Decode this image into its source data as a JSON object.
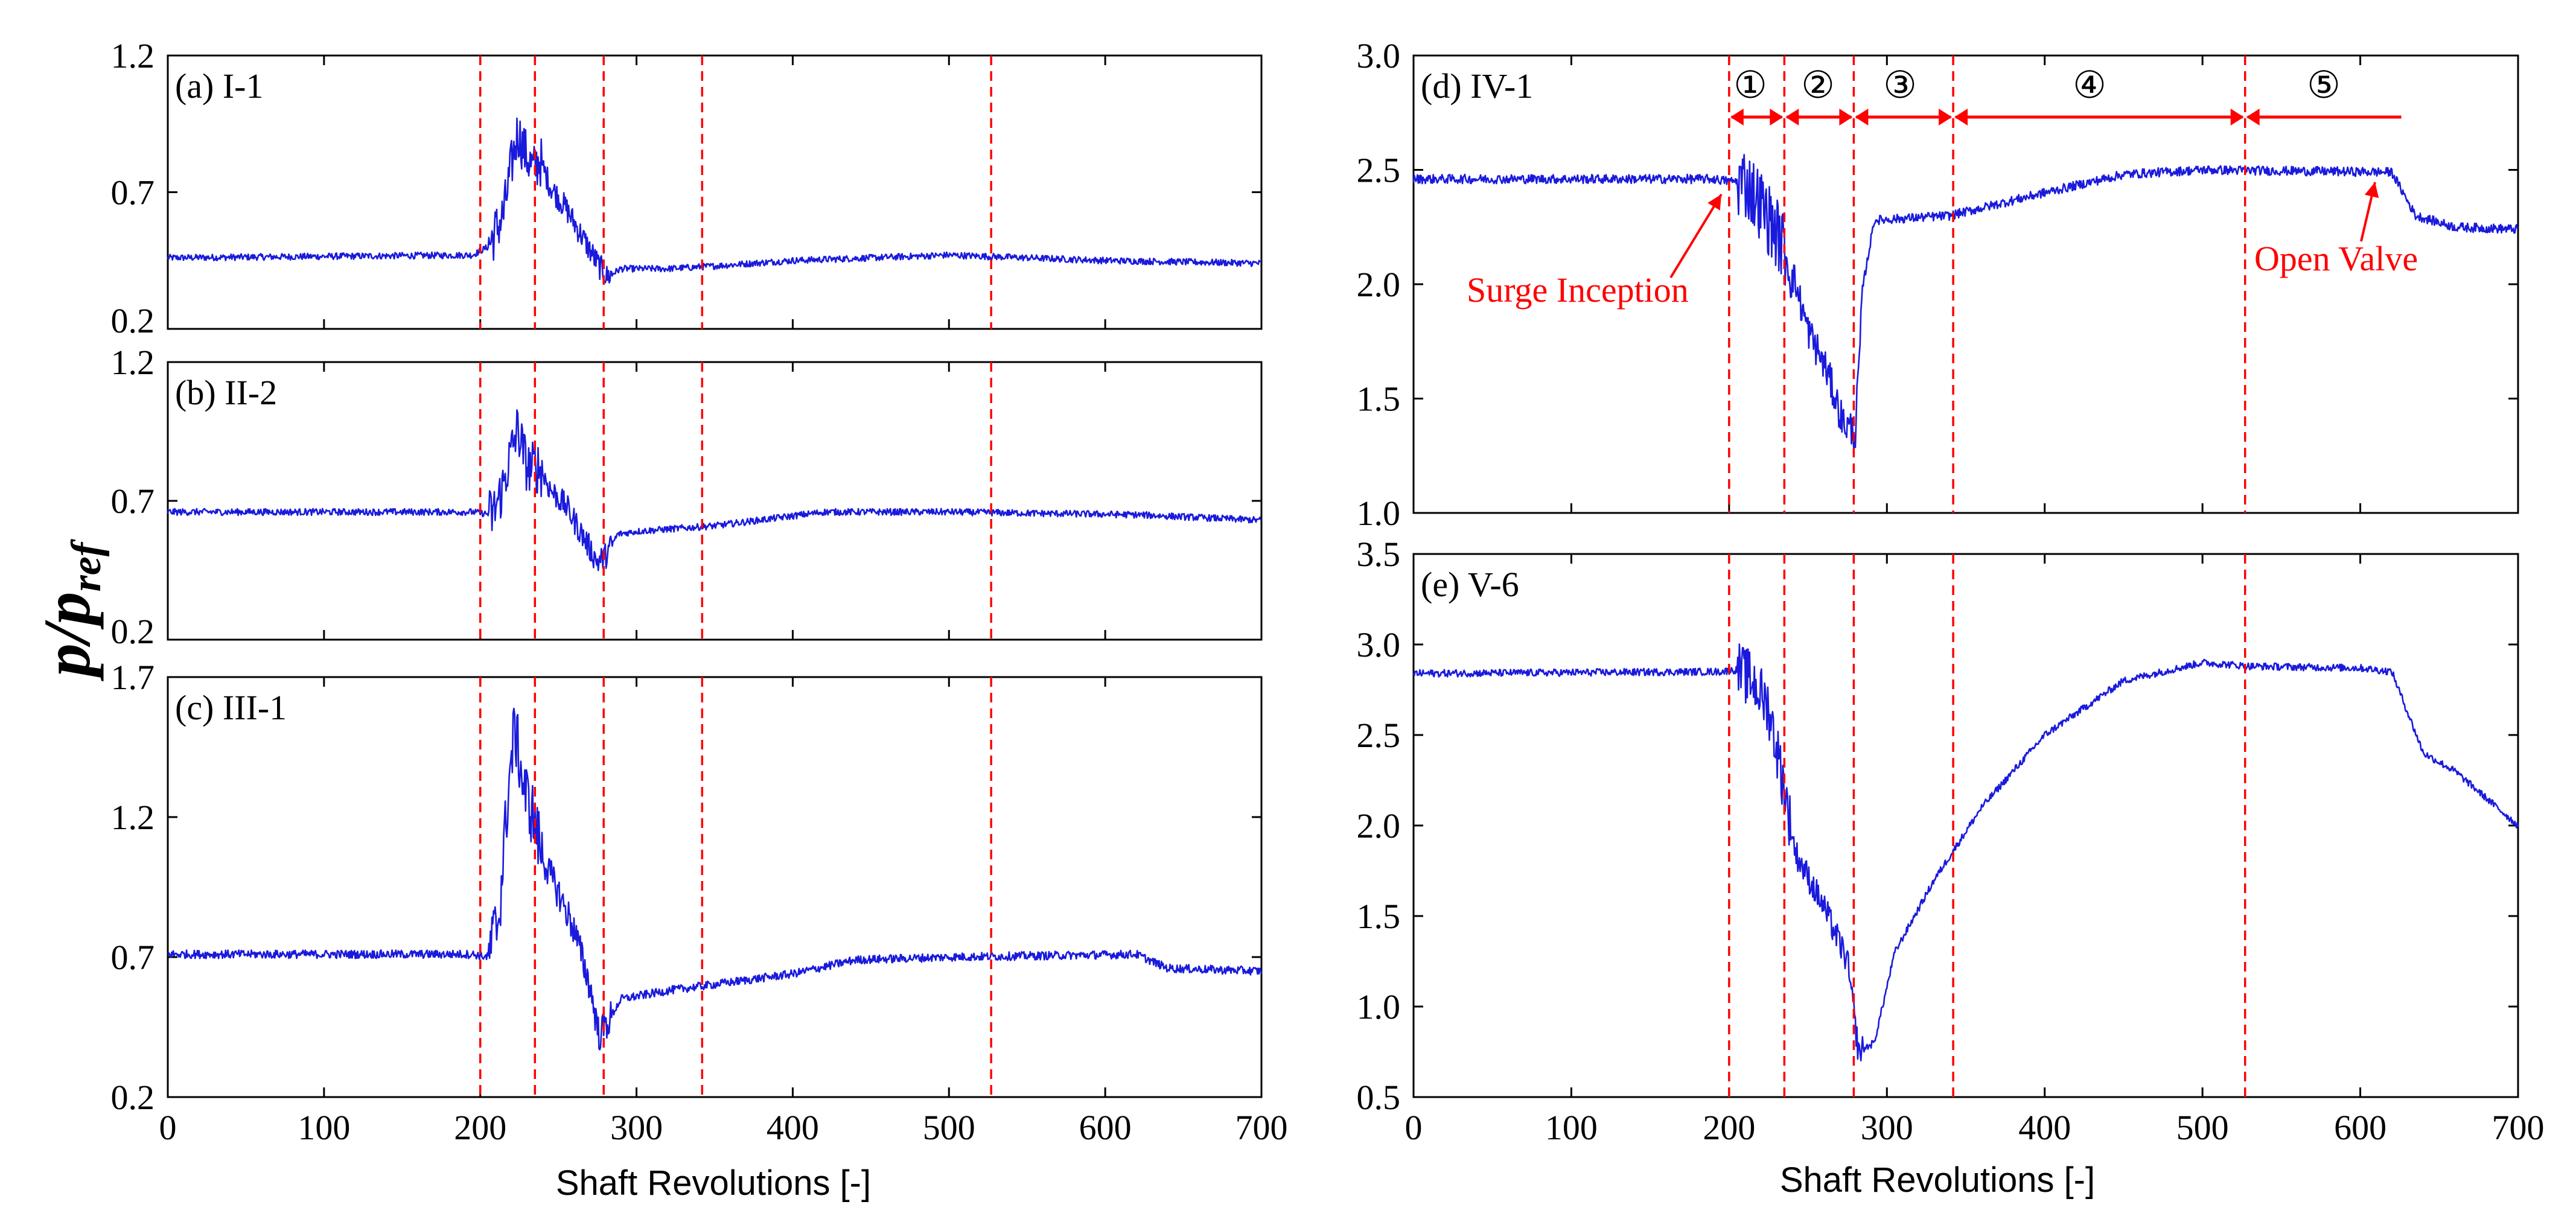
{
  "chart_data": {
    "type": "line",
    "shared": {
      "xlabel": "Shaft Revolutions [-]",
      "xlim": [
        0,
        700
      ],
      "xticks": [
        0,
        100,
        200,
        300,
        400,
        500,
        600,
        700
      ],
      "ylabel_base": "p",
      "ylabel_sep": "/",
      "ylabel_den": "p",
      "ylabel_sub": "ref",
      "event_lines_x": [
        200,
        235,
        279,
        342,
        527
      ],
      "series_color": "#1a1adc",
      "event_color": "#ff0000"
    },
    "panels": [
      {
        "label": "(a) I-1",
        "ylim": [
          0.2,
          1.2
        ],
        "yticks": [
          "0.2",
          "0.7",
          "1.2"
        ],
        "series_profile": [
          [
            0,
            0.46
          ],
          [
            195,
            0.47
          ],
          [
            205,
            0.5
          ],
          [
            215,
            0.62
          ],
          [
            220,
            0.8
          ],
          [
            224,
            0.92
          ],
          [
            229,
            0.84
          ],
          [
            234,
            0.78
          ],
          [
            238,
            0.82
          ],
          [
            245,
            0.72
          ],
          [
            255,
            0.64
          ],
          [
            265,
            0.54
          ],
          [
            275,
            0.44
          ],
          [
            281,
            0.39
          ],
          [
            290,
            0.42
          ],
          [
            320,
            0.42
          ],
          [
            350,
            0.43
          ],
          [
            400,
            0.45
          ],
          [
            500,
            0.47
          ],
          [
            600,
            0.45
          ],
          [
            700,
            0.44
          ]
        ],
        "noise": 0.012
      },
      {
        "label": "(b) II-2",
        "ylim": [
          0.2,
          1.2
        ],
        "yticks": [
          "0.2",
          "0.7",
          "1.2"
        ],
        "series_profile": [
          [
            0,
            0.66
          ],
          [
            195,
            0.66
          ],
          [
            208,
            0.65
          ],
          [
            214,
            0.74
          ],
          [
            220,
            0.88
          ],
          [
            224,
            0.96
          ],
          [
            230,
            0.82
          ],
          [
            238,
            0.82
          ],
          [
            245,
            0.74
          ],
          [
            255,
            0.68
          ],
          [
            265,
            0.58
          ],
          [
            275,
            0.48
          ],
          [
            280,
            0.5
          ],
          [
            288,
            0.58
          ],
          [
            300,
            0.59
          ],
          [
            350,
            0.61
          ],
          [
            420,
            0.66
          ],
          [
            500,
            0.66
          ],
          [
            620,
            0.65
          ],
          [
            700,
            0.63
          ]
        ],
        "noise": 0.012
      },
      {
        "label": "(c) III-1",
        "ylim": [
          0.2,
          1.7
        ],
        "yticks": [
          "0.2",
          "0.7",
          "1.2",
          "1.7"
        ],
        "series_profile": [
          [
            0,
            0.71
          ],
          [
            195,
            0.71
          ],
          [
            205,
            0.7
          ],
          [
            212,
            0.85
          ],
          [
            218,
            1.3
          ],
          [
            222,
            1.52
          ],
          [
            228,
            1.3
          ],
          [
            234,
            1.2
          ],
          [
            240,
            1.05
          ],
          [
            250,
            0.93
          ],
          [
            260,
            0.8
          ],
          [
            270,
            0.6
          ],
          [
            276,
            0.42
          ],
          [
            281,
            0.46
          ],
          [
            290,
            0.55
          ],
          [
            320,
            0.58
          ],
          [
            400,
            0.64
          ],
          [
            440,
            0.69
          ],
          [
            500,
            0.7
          ],
          [
            620,
            0.71
          ],
          [
            640,
            0.66
          ],
          [
            700,
            0.65
          ]
        ],
        "noise": 0.015
      },
      {
        "label": "(d) IV-1",
        "ylim": [
          1.0,
          3.0
        ],
        "yticks": [
          "1.0",
          "1.5",
          "2.0",
          "2.5",
          "3.0"
        ],
        "series_profile": [
          [
            0,
            2.46
          ],
          [
            190,
            2.46
          ],
          [
            200,
            2.45
          ],
          [
            210,
            2.45
          ],
          [
            220,
            2.35
          ],
          [
            232,
            2.2
          ],
          [
            238,
            2.1
          ],
          [
            250,
            1.8
          ],
          [
            262,
            1.62
          ],
          [
            272,
            1.4
          ],
          [
            280,
            1.35
          ],
          [
            285,
            2.0
          ],
          [
            292,
            2.28
          ],
          [
            340,
            2.3
          ],
          [
            400,
            2.4
          ],
          [
            450,
            2.48
          ],
          [
            500,
            2.5
          ],
          [
            620,
            2.49
          ],
          [
            635,
            2.3
          ],
          [
            660,
            2.25
          ],
          [
            700,
            2.24
          ]
        ],
        "noise": 0.02,
        "phases": [
          "①",
          "②",
          "③",
          "④",
          "⑤"
        ],
        "annotations": [
          "Surge Inception",
          "Open Valve"
        ]
      },
      {
        "label": "(e) V-6",
        "ylim": [
          0.5,
          3.5
        ],
        "yticks": [
          "0.5",
          "1.0",
          "1.5",
          "2.0",
          "2.5",
          "3.0",
          "3.5"
        ],
        "series_profile": [
          [
            0,
            2.84
          ],
          [
            195,
            2.85
          ],
          [
            205,
            2.86
          ],
          [
            215,
            2.8
          ],
          [
            225,
            2.65
          ],
          [
            233,
            2.3
          ],
          [
            242,
            1.85
          ],
          [
            260,
            1.55
          ],
          [
            275,
            1.25
          ],
          [
            282,
            0.75
          ],
          [
            292,
            0.8
          ],
          [
            305,
            1.3
          ],
          [
            330,
            1.7
          ],
          [
            360,
            2.1
          ],
          [
            400,
            2.5
          ],
          [
            450,
            2.8
          ],
          [
            500,
            2.9
          ],
          [
            530,
            2.88
          ],
          [
            600,
            2.87
          ],
          [
            620,
            2.85
          ],
          [
            640,
            2.4
          ],
          [
            660,
            2.3
          ],
          [
            700,
            2.0
          ]
        ],
        "noise": 0.02
      }
    ]
  }
}
